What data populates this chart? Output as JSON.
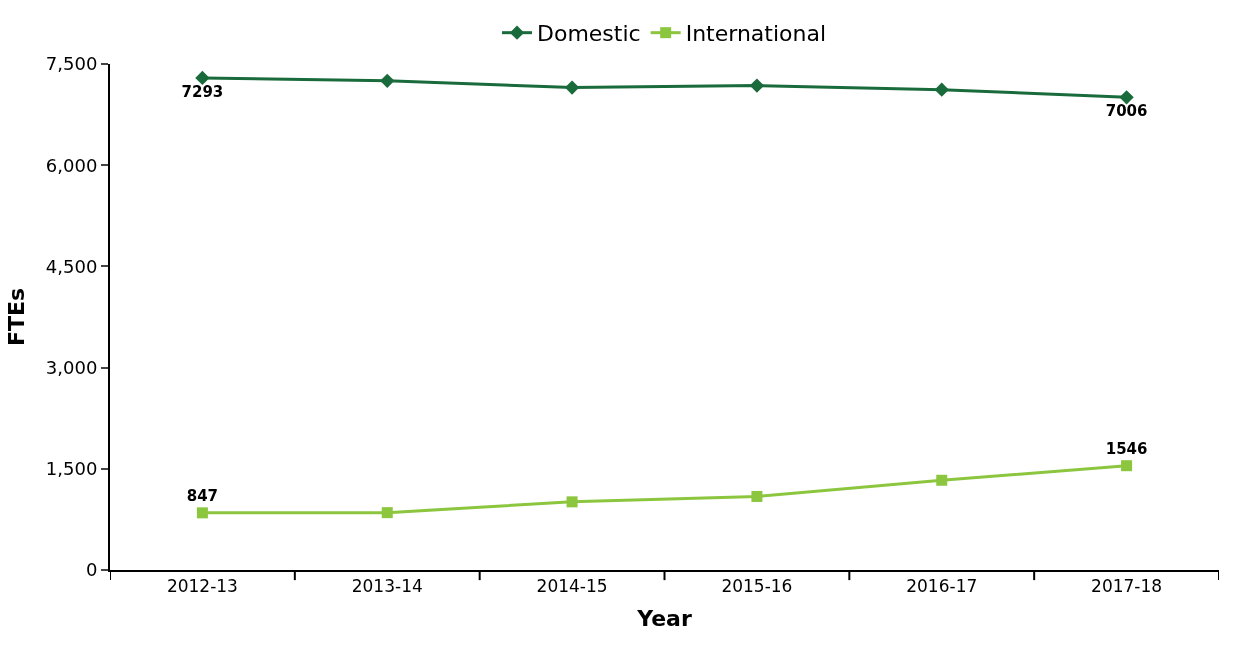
{
  "chart_data": {
    "type": "line",
    "xlabel": "Year",
    "ylabel": "FTEs",
    "categories": [
      "2012-13",
      "2013-14",
      "2014-15",
      "2015-16",
      "2016-17",
      "2017-18"
    ],
    "series": [
      {
        "name": "Domestic",
        "color": "#1a6b3c",
        "marker": "diamond",
        "values": [
          7293,
          7250,
          7150,
          7180,
          7120,
          7006
        ],
        "value_labels": [
          "7293",
          null,
          null,
          null,
          null,
          "7006"
        ]
      },
      {
        "name": "International",
        "color": "#8cc63f",
        "marker": "square",
        "values": [
          847,
          850,
          1010,
          1090,
          1330,
          1546
        ],
        "value_labels": [
          "847",
          null,
          null,
          null,
          null,
          "1546"
        ]
      }
    ],
    "ylim": [
      0,
      7500
    ],
    "yticks": [
      {
        "value": 0,
        "label": "0"
      },
      {
        "value": 1500,
        "label": "1,500"
      },
      {
        "value": 3000,
        "label": "3,000"
      },
      {
        "value": 4500,
        "label": "4,500"
      },
      {
        "value": 6000,
        "label": "6,000"
      },
      {
        "value": 7500,
        "label": "7,500"
      }
    ],
    "legend": "top",
    "line_style": "solid"
  }
}
